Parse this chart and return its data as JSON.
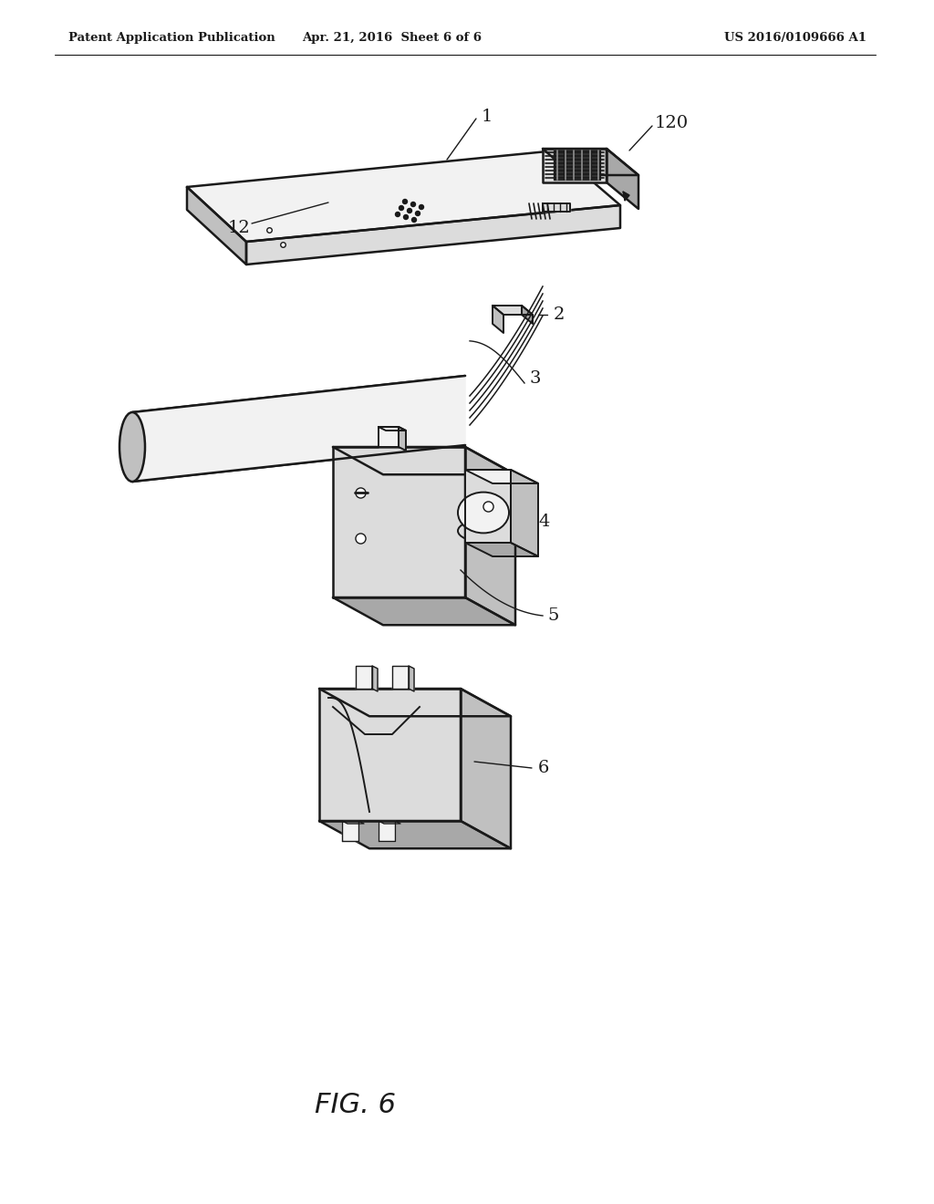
{
  "background_color": "#ffffff",
  "header_left": "Patent Application Publication",
  "header_center": "Apr. 21, 2016  Sheet 6 of 6",
  "header_right": "US 2016/0109666 A1",
  "figure_label": "FIG. 6",
  "black": "#1a1a1a",
  "fill_light": "#f2f2f2",
  "fill_mid": "#dcdcdc",
  "fill_dark": "#c0c0c0",
  "fill_darker": "#a8a8a8"
}
